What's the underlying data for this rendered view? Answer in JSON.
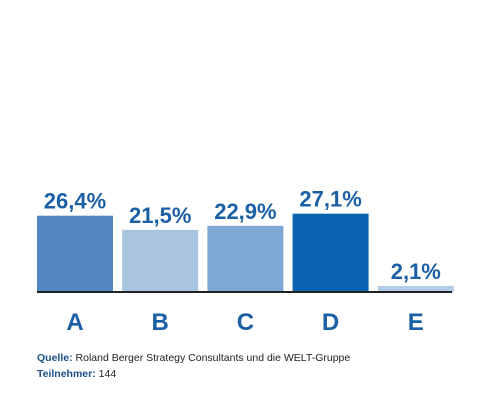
{
  "chart_data": {
    "type": "bar",
    "categories": [
      "A",
      "B",
      "C",
      "D",
      "E"
    ],
    "values": [
      26.4,
      21.5,
      22.9,
      27.1,
      2.1
    ],
    "value_labels": [
      "26,4%",
      "21,5%",
      "22,9%",
      "27,1%",
      "2,1%"
    ],
    "colors": [
      "#5487c0",
      "#a9c4df",
      "#7ea8d3",
      "#0a63b0",
      "#b2cbe6"
    ],
    "label_color": "#1b5fa4",
    "axis_color": "#222222",
    "ylim": [
      0,
      30
    ],
    "grid": false,
    "legend": "none"
  },
  "footer": {
    "source_label": "Quelle:",
    "source_text": "Roland Berger Strategy Consultants und die WELT-Gruppe",
    "participants_label": "Teilnehmer:",
    "participants_text": "144"
  }
}
